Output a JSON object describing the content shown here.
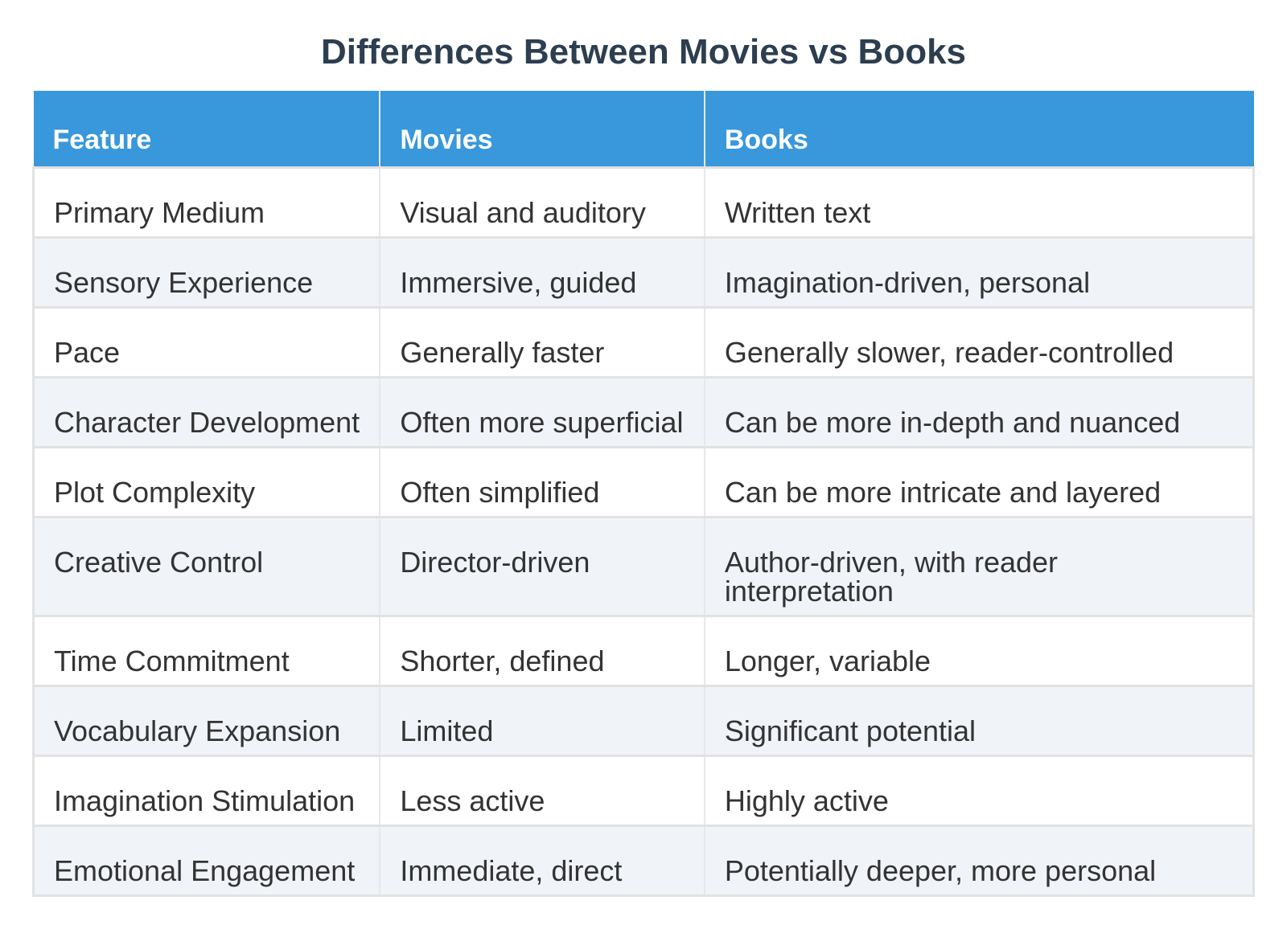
{
  "title": "Differences Between Movies vs Books",
  "chart_data": {
    "type": "table",
    "title": "Differences Between Movies vs Books",
    "columns": [
      "Feature",
      "Movies",
      "Books"
    ],
    "rows": [
      [
        "Primary Medium",
        "Visual and auditory",
        "Written text"
      ],
      [
        "Sensory Experience",
        "Immersive, guided",
        "Imagination-driven, personal"
      ],
      [
        "Pace",
        "Generally faster",
        "Generally slower, reader-controlled"
      ],
      [
        "Character Development",
        "Often more superficial",
        "Can be more in-depth and nuanced"
      ],
      [
        "Plot Complexity",
        "Often simplified",
        "Can be more intricate and layered"
      ],
      [
        "Creative Control",
        "Director-driven",
        "Author-driven, with reader interpretation"
      ],
      [
        "Time Commitment",
        "Shorter, defined",
        "Longer, variable"
      ],
      [
        "Vocabulary Expansion",
        "Limited",
        "Significant potential"
      ],
      [
        "Imagination Stimulation",
        "Less active",
        "Highly active"
      ],
      [
        "Emotional Engagement",
        "Immediate, direct",
        "Potentially deeper, more personal"
      ]
    ],
    "legend": "none",
    "grid": "light-gray row and column separators, zebra striping on even rows"
  },
  "colors": {
    "header_bg": "#3898db",
    "header_text": "#ffffff",
    "title": "#2c3e50",
    "body_text": "#333333",
    "row_alt_bg": "#f0f3f8",
    "row_line": "#e2e2e2",
    "col_line": "#e6e8eb"
  }
}
